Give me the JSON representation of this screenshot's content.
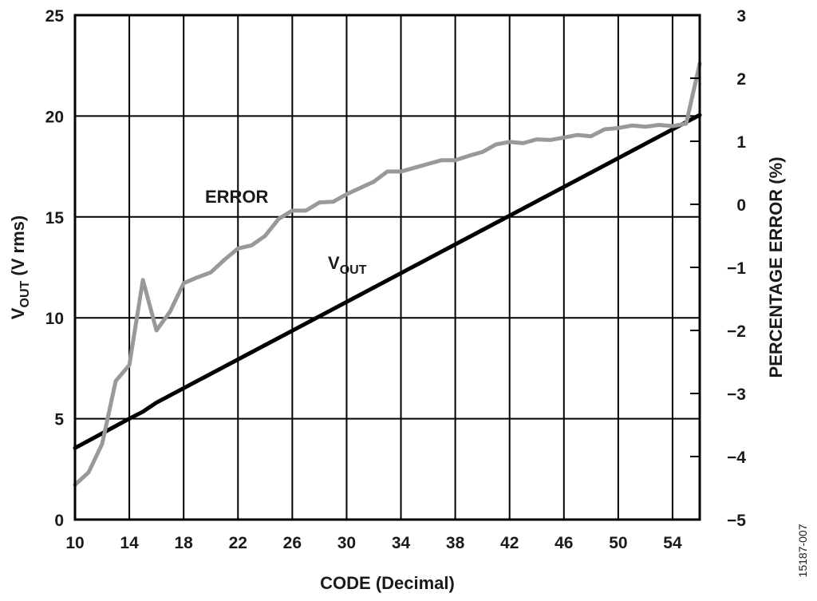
{
  "chart_data": {
    "type": "line",
    "xlabel": "CODE (Decimal)",
    "ylabel_left": {
      "main": "V",
      "sub": "OUT",
      "rest": " (V rms)"
    },
    "ylabel_right": "PERCENTAGE ERROR (%)",
    "xlim": [
      10,
      56
    ],
    "ylim_left": [
      0,
      25
    ],
    "ylim_right": [
      -5,
      3
    ],
    "x_ticks": [
      10,
      14,
      18,
      22,
      26,
      30,
      34,
      38,
      42,
      46,
      50,
      54
    ],
    "x_grid": [
      10,
      14,
      18,
      22,
      26,
      30,
      34,
      38,
      42,
      46,
      50,
      54
    ],
    "y_ticks_left": [
      0,
      5,
      10,
      15,
      20,
      25
    ],
    "y_ticks_right": [
      "3",
      "2",
      "1",
      "0",
      "−1",
      "−2",
      "−3",
      "−4",
      "−5"
    ],
    "y_ticks_right_values": [
      3,
      2,
      1,
      0,
      -1,
      -2,
      -3,
      -4,
      -5
    ],
    "grid": true,
    "series": [
      {
        "name": "VOUT",
        "axis": "left",
        "color": "#000000",
        "x": [
          10,
          14,
          15,
          16,
          56
        ],
        "y": [
          3.55,
          5.0,
          5.35,
          5.8,
          20.05
        ]
      },
      {
        "name": "ERROR",
        "axis": "right",
        "color": "#999999",
        "x": [
          10,
          11,
          12,
          13,
          14,
          15,
          16,
          17,
          18,
          19,
          20,
          21,
          22,
          23,
          24,
          25,
          26,
          27,
          28,
          29,
          30,
          31,
          32,
          33,
          34,
          35,
          36,
          37,
          38,
          39,
          40,
          41,
          42,
          43,
          44,
          45,
          46,
          47,
          48,
          49,
          50,
          51,
          52,
          53,
          54,
          55,
          56
        ],
        "y": [
          -4.45,
          -4.25,
          -3.8,
          -2.8,
          -2.55,
          -1.2,
          -2.0,
          -1.7,
          -1.25,
          -1.16,
          -1.08,
          -0.88,
          -0.7,
          -0.65,
          -0.5,
          -0.23,
          -0.1,
          -0.1,
          0.03,
          0.04,
          0.16,
          0.26,
          0.36,
          0.52,
          0.52,
          0.58,
          0.64,
          0.7,
          0.7,
          0.77,
          0.83,
          0.95,
          0.99,
          0.97,
          1.03,
          1.02,
          1.06,
          1.1,
          1.08,
          1.19,
          1.21,
          1.25,
          1.23,
          1.26,
          1.24,
          1.28,
          2.23
        ]
      }
    ],
    "annotations": [
      {
        "label": "ERROR",
        "text": "ERROR"
      },
      {
        "label": "VOUT",
        "main": "V",
        "sub": "OUT"
      }
    ],
    "figure_id": "15187-007"
  }
}
